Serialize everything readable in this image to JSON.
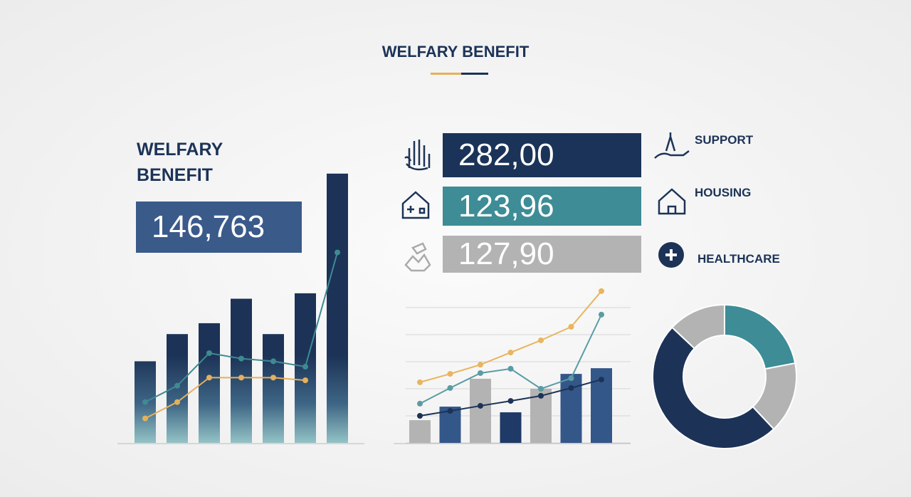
{
  "header": {
    "title": "WELFARY BENEFIT"
  },
  "kpi": {
    "title": "WELFARY BENEFIT",
    "value": "146,763"
  },
  "stats": [
    {
      "value": "282,00",
      "label": "SUPPORT",
      "color": "#1b3358"
    },
    {
      "value": "123,96",
      "label": "HOUSING",
      "color": "#3d8c96"
    },
    {
      "value": "127,90",
      "label": "HEALTHCARE",
      "color": "#b3b3b3"
    }
  ],
  "chart_data": [
    {
      "type": "bar",
      "values": [
        30,
        40,
        44,
        53,
        40,
        55,
        99
      ],
      "color": "#1c3357",
      "ylim": [
        0,
        100
      ],
      "lines": [
        {
          "color": "#3f8a92",
          "values": [
            15,
            21,
            33,
            31,
            30,
            28,
            70
          ]
        },
        {
          "color": "#e3b15c",
          "values": [
            9,
            15,
            24,
            24,
            24,
            23,
            null
          ]
        }
      ]
    },
    {
      "type": "bar",
      "values": [
        0.84,
        1.34,
        2.37,
        1.13,
        2.0,
        2.55,
        2.76
      ],
      "colors": [
        "#b3b3b3",
        "#34578a",
        "#b3b3b3",
        "#1f3a66",
        "#b3b3b3",
        "#34578a",
        "#34578a"
      ],
      "ylim": [
        0,
        6
      ],
      "yticks": [
        0,
        1,
        2,
        3,
        4,
        5
      ],
      "grid": true,
      "lines": [
        {
          "color": "#e8b55e",
          "values": [
            2.24,
            2.55,
            2.89,
            3.34,
            3.79,
            4.29,
            5.61
          ]
        },
        {
          "color": "#5a9ca4",
          "values": [
            1.45,
            2.03,
            2.58,
            2.74,
            2.0,
            2.39,
            4.74
          ]
        },
        {
          "color": "#1c3357",
          "values": [
            1.0,
            1.18,
            1.37,
            1.55,
            1.74,
            2.03,
            2.34
          ]
        }
      ]
    },
    {
      "type": "pie",
      "values": [
        22,
        16,
        49,
        13
      ],
      "colors": [
        "#3d8c96",
        "#b3b3b3",
        "#1c3357",
        "#b3b3b3"
      ]
    }
  ]
}
